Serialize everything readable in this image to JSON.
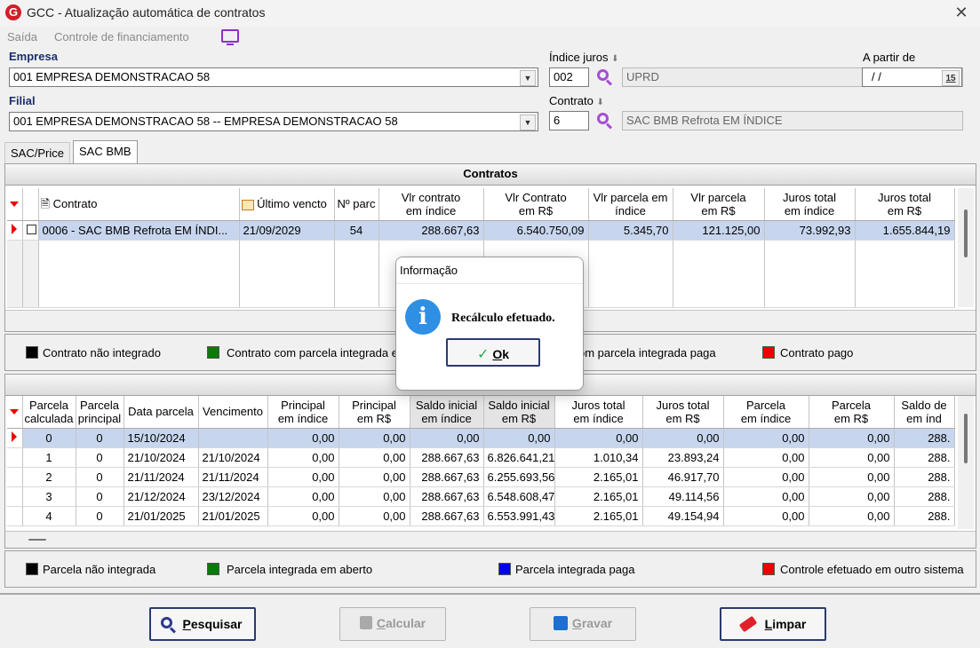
{
  "window": {
    "title": "GCC - Atualização automática de contratos",
    "logo": "G"
  },
  "menu": {
    "items": [
      "Saída",
      "Controle de financiamento"
    ]
  },
  "form": {
    "empresa_label": "Empresa",
    "empresa_value": "001 EMPRESA DEMONSTRACAO 58",
    "filial_label": "Filial",
    "filial_value": "001 EMPRESA DEMONSTRACAO 58 -- EMPRESA DEMONSTRACAO 58",
    "indice_label": "Índice juros",
    "indice_code": "002",
    "indice_desc": "UPRD",
    "contrato_label": "Contrato",
    "contrato_code": "6",
    "contrato_desc": "SAC BMB Refrota EM ÍNDICE",
    "apartir_label": "A partir de",
    "apartir_value": "/ /",
    "calendar_glyph": "15"
  },
  "tabs": [
    "SAC/Price",
    "SAC BMB"
  ],
  "contracts": {
    "title": "Contratos",
    "headers": {
      "contrato": "Contrato",
      "ultimo": "Último vencto",
      "nparc": "Nº parc",
      "vlr_indice": [
        "Vlr contrato",
        "em índice"
      ],
      "vlr_rs": [
        "Vlr Contrato",
        "em R$"
      ],
      "parc_indice": [
        "Vlr parcela em",
        "índice"
      ],
      "parc_rs": [
        "Vlr parcela",
        "em R$"
      ],
      "juros_indice": [
        "Juros total",
        "em índice"
      ],
      "juros_rs": [
        "Juros total",
        "em R$"
      ]
    },
    "row": {
      "contrato": "0006 - SAC BMB Refrota EM ÍNDI...",
      "ultimo": "21/09/2029",
      "nparc": "54",
      "vlr_indice": "288.667,63",
      "vlr_rs": "6.540.750,09",
      "parc_indice": "5.345,70",
      "parc_rs": "121.125,00",
      "juros_indice": "73.992,93",
      "juros_rs": "1.655.844,19"
    }
  },
  "legend1": [
    {
      "color": "#000000",
      "label": "Contrato não integrado"
    },
    {
      "color": "#0a7a0a",
      "label": "Contrato com parcela integrada em aberto"
    },
    {
      "color": "#0000ee",
      "label": "Contrato com parcela integrada paga"
    },
    {
      "color": "#ee0000",
      "label": "Contrato pago"
    }
  ],
  "parcelas": {
    "headers": {
      "calc": [
        "Parcela",
        "calculada"
      ],
      "princ": [
        "Parcela",
        "principal"
      ],
      "data": "Data parcela",
      "venc": "Vencimento",
      "p_ind": [
        "Principal",
        "em índice"
      ],
      "p_rs": [
        "Principal",
        "em R$"
      ],
      "s_ind": [
        "Saldo inicial",
        "em índice"
      ],
      "s_rs": [
        "Saldo inicial",
        "em R$"
      ],
      "j_ind": [
        "Juros total",
        "em índice"
      ],
      "j_rs": [
        "Juros total",
        "em R$"
      ],
      "pa_ind": [
        "Parcela",
        "em índice"
      ],
      "pa_rs": [
        "Parcela",
        "em R$"
      ],
      "sd": [
        "Saldo de",
        "em índ"
      ]
    },
    "rows": [
      [
        "0",
        "0",
        "15/10/2024",
        "",
        "0,00",
        "0,00",
        "0,00",
        "0,00",
        "0,00",
        "0,00",
        "0,00",
        "0,00",
        "288."
      ],
      [
        "1",
        "0",
        "21/10/2024",
        "21/10/2024",
        "0,00",
        "0,00",
        "288.667,63",
        "6.826.641,21",
        "1.010,34",
        "23.893,24",
        "0,00",
        "0,00",
        "288."
      ],
      [
        "2",
        "0",
        "21/11/2024",
        "21/11/2024",
        "0,00",
        "0,00",
        "288.667,63",
        "6.255.693,56",
        "2.165,01",
        "46.917,70",
        "0,00",
        "0,00",
        "288."
      ],
      [
        "3",
        "0",
        "21/12/2024",
        "23/12/2024",
        "0,00",
        "0,00",
        "288.667,63",
        "6.548.608,47",
        "2.165,01",
        "49.114,56",
        "0,00",
        "0,00",
        "288."
      ],
      [
        "4",
        "0",
        "21/01/2025",
        "21/01/2025",
        "0,00",
        "0,00",
        "288.667,63",
        "6.553.991,43",
        "2.165,01",
        "49.154,94",
        "0,00",
        "0,00",
        "288."
      ]
    ]
  },
  "legend2": [
    {
      "color": "#000000",
      "label": "Parcela não integrada"
    },
    {
      "color": "#0a7a0a",
      "label": "Parcela integrada em aberto"
    },
    {
      "color": "#0000ee",
      "label": "Parcela integrada paga"
    },
    {
      "color": "#ee0000",
      "label": "Controle efetuado em outro sistema"
    }
  ],
  "buttons": {
    "pesquisar": {
      "first": "P",
      "rest": "esquisar"
    },
    "calcular": {
      "first": "C",
      "rest": "alcular"
    },
    "gravar": {
      "first": "G",
      "rest": "ravar"
    },
    "limpar": {
      "first": "L",
      "rest": "impar"
    }
  },
  "dialog": {
    "title": "Informação",
    "message": "Recálculo efetuado.",
    "ok_first": "O",
    "ok_rest": "k",
    "icon_glyph": "i"
  }
}
